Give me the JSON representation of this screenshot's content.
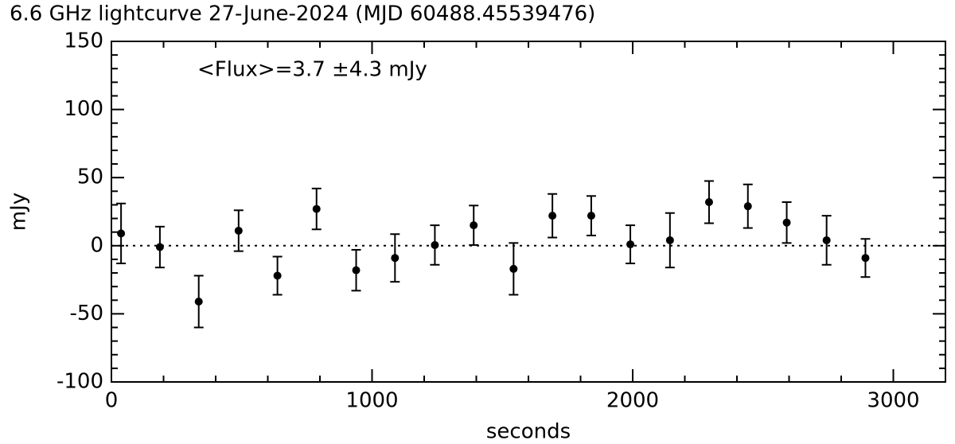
{
  "chart_data": {
    "type": "scatter",
    "title": "6.6 GHz lightcurve 27-June-2024  (MJD 60488.45539476)",
    "annotation": "<Flux>=3.7 ±4.3 mJy",
    "xlabel": "seconds",
    "ylabel": "mJy",
    "x": [
      37,
      186,
      335,
      488,
      637,
      787,
      939,
      1088,
      1241,
      1390,
      1543,
      1692,
      1841,
      1991,
      2143,
      2293,
      2442,
      2591,
      2744,
      2893
    ],
    "values": [
      9,
      -1,
      -41,
      11,
      -22,
      27,
      -18,
      -9,
      0.5,
      15,
      -17,
      22,
      22,
      1,
      4,
      32,
      29,
      17,
      4,
      -9
    ],
    "errors": [
      22,
      15,
      19,
      15,
      14,
      15,
      15,
      17.5,
      14.5,
      14.5,
      19,
      16,
      14.5,
      14,
      20,
      15.5,
      16,
      15,
      18,
      14
    ],
    "color": "#000000",
    "xlim": [
      0,
      3200
    ],
    "xticks": [
      0,
      1000,
      2000,
      3000
    ],
    "x_minor_ticks": [
      200,
      400,
      600,
      800,
      1200,
      1400,
      1600,
      1800,
      2200,
      2400,
      2600,
      2800,
      3200
    ],
    "ylim": [
      -100,
      150
    ],
    "yticks": [
      -100,
      -50,
      0,
      50,
      100,
      150
    ],
    "y_minor_ticks": [
      -90,
      -80,
      -70,
      -60,
      -40,
      -30,
      -20,
      -10,
      10,
      20,
      30,
      40,
      60,
      70,
      80,
      90,
      110,
      120,
      130,
      140
    ],
    "reference_line": 0
  }
}
